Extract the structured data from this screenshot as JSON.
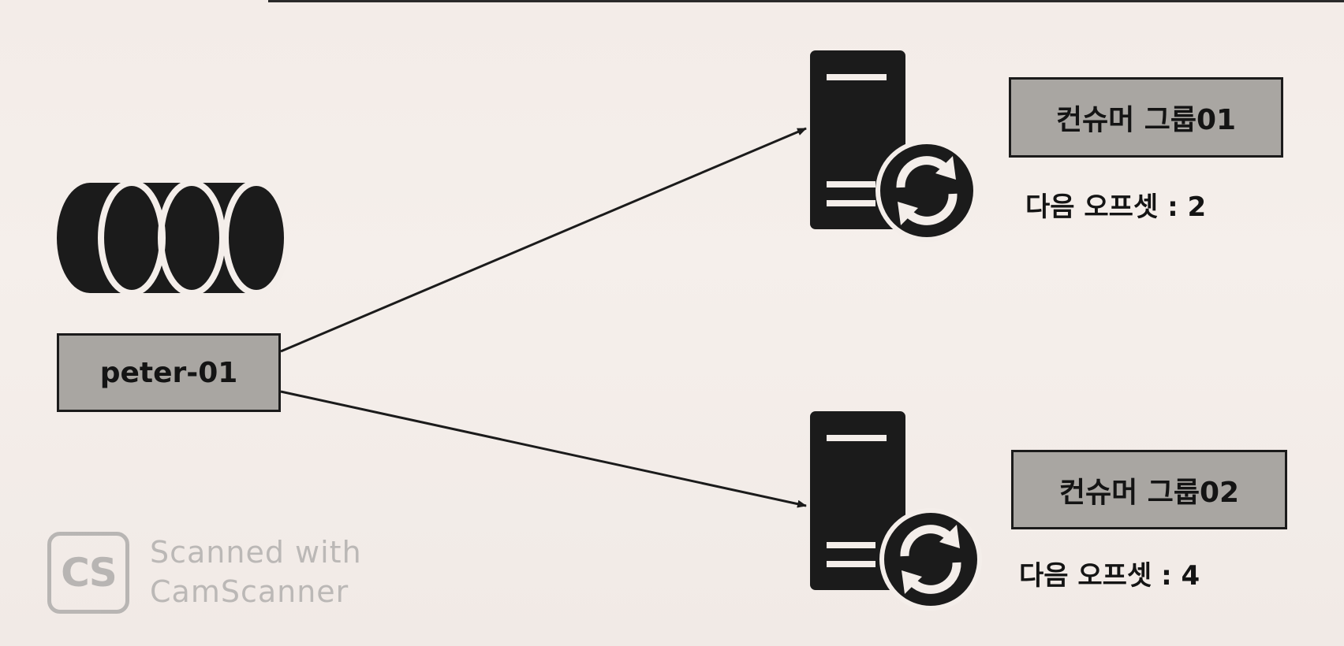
{
  "diagram": {
    "topic": {
      "label": "peter-01",
      "icon": "database-icon"
    },
    "consumer_groups": [
      {
        "label": "컨슈머 그룹01",
        "offset_text": "다음 오프셋 : 2",
        "icon": "server-sync-icon"
      },
      {
        "label": "컨슈머 그룹02",
        "offset_text": "다음 오프셋 : 4",
        "icon": "server-sync-icon"
      }
    ],
    "connections": [
      {
        "from": "peter-01",
        "to": "컨슈머 그룹01"
      },
      {
        "from": "peter-01",
        "to": "컨슈머 그룹02"
      }
    ]
  },
  "watermark": {
    "logo_text": "CS",
    "line1": "Scanned with",
    "line2": "CamScanner"
  },
  "colors": {
    "label_fill": "#a9a6a2",
    "ink": "#1b1b1b",
    "watermark": "#8a8a8a"
  }
}
